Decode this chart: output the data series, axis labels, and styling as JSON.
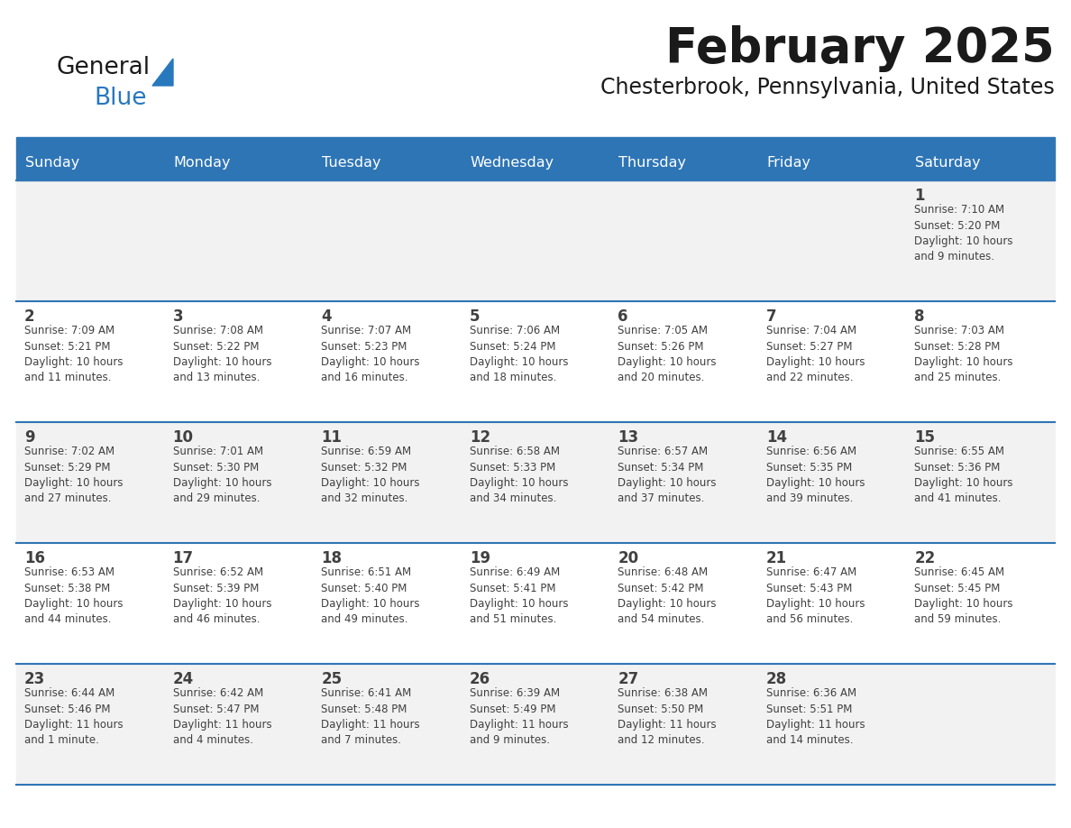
{
  "title": "February 2025",
  "subtitle": "Chesterbrook, Pennsylvania, United States",
  "header_bg": "#2E75B6",
  "header_text_color": "#FFFFFF",
  "row_bg_light": "#F2F2F2",
  "row_bg_white": "#FFFFFF",
  "text_color": "#404040",
  "day_headers": [
    "Sunday",
    "Monday",
    "Tuesday",
    "Wednesday",
    "Thursday",
    "Friday",
    "Saturday"
  ],
  "weeks": [
    [
      {
        "day": null,
        "info": ""
      },
      {
        "day": null,
        "info": ""
      },
      {
        "day": null,
        "info": ""
      },
      {
        "day": null,
        "info": ""
      },
      {
        "day": null,
        "info": ""
      },
      {
        "day": null,
        "info": ""
      },
      {
        "day": 1,
        "info": "Sunrise: 7:10 AM\nSunset: 5:20 PM\nDaylight: 10 hours\nand 9 minutes."
      }
    ],
    [
      {
        "day": 2,
        "info": "Sunrise: 7:09 AM\nSunset: 5:21 PM\nDaylight: 10 hours\nand 11 minutes."
      },
      {
        "day": 3,
        "info": "Sunrise: 7:08 AM\nSunset: 5:22 PM\nDaylight: 10 hours\nand 13 minutes."
      },
      {
        "day": 4,
        "info": "Sunrise: 7:07 AM\nSunset: 5:23 PM\nDaylight: 10 hours\nand 16 minutes."
      },
      {
        "day": 5,
        "info": "Sunrise: 7:06 AM\nSunset: 5:24 PM\nDaylight: 10 hours\nand 18 minutes."
      },
      {
        "day": 6,
        "info": "Sunrise: 7:05 AM\nSunset: 5:26 PM\nDaylight: 10 hours\nand 20 minutes."
      },
      {
        "day": 7,
        "info": "Sunrise: 7:04 AM\nSunset: 5:27 PM\nDaylight: 10 hours\nand 22 minutes."
      },
      {
        "day": 8,
        "info": "Sunrise: 7:03 AM\nSunset: 5:28 PM\nDaylight: 10 hours\nand 25 minutes."
      }
    ],
    [
      {
        "day": 9,
        "info": "Sunrise: 7:02 AM\nSunset: 5:29 PM\nDaylight: 10 hours\nand 27 minutes."
      },
      {
        "day": 10,
        "info": "Sunrise: 7:01 AM\nSunset: 5:30 PM\nDaylight: 10 hours\nand 29 minutes."
      },
      {
        "day": 11,
        "info": "Sunrise: 6:59 AM\nSunset: 5:32 PM\nDaylight: 10 hours\nand 32 minutes."
      },
      {
        "day": 12,
        "info": "Sunrise: 6:58 AM\nSunset: 5:33 PM\nDaylight: 10 hours\nand 34 minutes."
      },
      {
        "day": 13,
        "info": "Sunrise: 6:57 AM\nSunset: 5:34 PM\nDaylight: 10 hours\nand 37 minutes."
      },
      {
        "day": 14,
        "info": "Sunrise: 6:56 AM\nSunset: 5:35 PM\nDaylight: 10 hours\nand 39 minutes."
      },
      {
        "day": 15,
        "info": "Sunrise: 6:55 AM\nSunset: 5:36 PM\nDaylight: 10 hours\nand 41 minutes."
      }
    ],
    [
      {
        "day": 16,
        "info": "Sunrise: 6:53 AM\nSunset: 5:38 PM\nDaylight: 10 hours\nand 44 minutes."
      },
      {
        "day": 17,
        "info": "Sunrise: 6:52 AM\nSunset: 5:39 PM\nDaylight: 10 hours\nand 46 minutes."
      },
      {
        "day": 18,
        "info": "Sunrise: 6:51 AM\nSunset: 5:40 PM\nDaylight: 10 hours\nand 49 minutes."
      },
      {
        "day": 19,
        "info": "Sunrise: 6:49 AM\nSunset: 5:41 PM\nDaylight: 10 hours\nand 51 minutes."
      },
      {
        "day": 20,
        "info": "Sunrise: 6:48 AM\nSunset: 5:42 PM\nDaylight: 10 hours\nand 54 minutes."
      },
      {
        "day": 21,
        "info": "Sunrise: 6:47 AM\nSunset: 5:43 PM\nDaylight: 10 hours\nand 56 minutes."
      },
      {
        "day": 22,
        "info": "Sunrise: 6:45 AM\nSunset: 5:45 PM\nDaylight: 10 hours\nand 59 minutes."
      }
    ],
    [
      {
        "day": 23,
        "info": "Sunrise: 6:44 AM\nSunset: 5:46 PM\nDaylight: 11 hours\nand 1 minute."
      },
      {
        "day": 24,
        "info": "Sunrise: 6:42 AM\nSunset: 5:47 PM\nDaylight: 11 hours\nand 4 minutes."
      },
      {
        "day": 25,
        "info": "Sunrise: 6:41 AM\nSunset: 5:48 PM\nDaylight: 11 hours\nand 7 minutes."
      },
      {
        "day": 26,
        "info": "Sunrise: 6:39 AM\nSunset: 5:49 PM\nDaylight: 11 hours\nand 9 minutes."
      },
      {
        "day": 27,
        "info": "Sunrise: 6:38 AM\nSunset: 5:50 PM\nDaylight: 11 hours\nand 12 minutes."
      },
      {
        "day": 28,
        "info": "Sunrise: 6:36 AM\nSunset: 5:51 PM\nDaylight: 11 hours\nand 14 minutes."
      },
      {
        "day": null,
        "info": ""
      }
    ]
  ],
  "logo_general_color": "#1a1a1a",
  "logo_blue_color": "#2878BE",
  "logo_triangle_color": "#2878BE",
  "border_color": "#2E75B6",
  "separator_color": "#2E75B6"
}
